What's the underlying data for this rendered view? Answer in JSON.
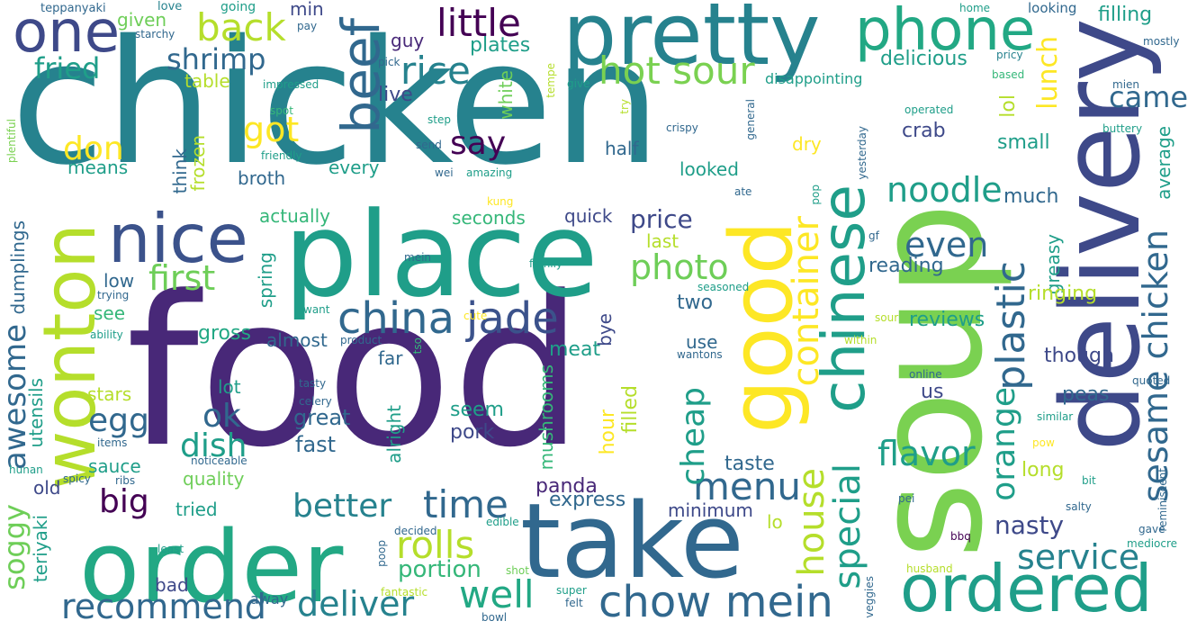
{
  "words": {
    "chicken": "chicken",
    "food": "food",
    "soup": "soup",
    "delivery": "delivery",
    "place": "place",
    "take": "take",
    "order": "order",
    "pretty": "pretty",
    "good": "good",
    "wonton": "wonton",
    "ordered": "ordered",
    "nice": "nice",
    "phone": "phone",
    "one": "one",
    "chinese": "chinese",
    "beef": "beef",
    "china": "china",
    "jade": "jade",
    "chow_mein": "chow mein",
    "sesame_chicken": "sesame chicken",
    "rice": "rice",
    "little": "little",
    "back": "back",
    "hot_sour": "hot sour",
    "plastic": "plastic",
    "container": "container",
    "noodle": "noodle",
    "photo": "photo",
    "menu": "menu",
    "time": "time",
    "rolls": "rolls",
    "well": "well",
    "deliver": "deliver",
    "recommend": "recommend",
    "service": "service",
    "house": "house",
    "special": "special",
    "even": "even",
    "flavor": "flavor",
    "orange": "orange",
    "cheap": "cheap",
    "better": "better",
    "first": "first",
    "fried": "fried",
    "shrimp": "shrimp",
    "got": "got",
    "say": "say",
    "came": "came",
    "lunch": "lunch",
    "don": "don",
    "egg": "egg",
    "ok": "ok",
    "dish": "dish",
    "big": "big",
    "awesome": "awesome",
    "soggy": "soggy",
    "portion": "portion",
    "price": "price",
    "nasty": "nasty",
    "filling": "filling",
    "delicious": "delicious",
    "live": "live",
    "plates": "plates",
    "guy": "guy",
    "min": "min",
    "table": "table",
    "given": "given",
    "means": "means",
    "think": "think",
    "frozen": "frozen",
    "white": "white",
    "lol": "lol",
    "crab": "crab",
    "small": "small",
    "much": "much",
    "average": "average",
    "greasy": "greasy",
    "ringing": "ringing",
    "reviews": "reviews",
    "reading": "reading",
    "though": "though",
    "peas": "peas",
    "long": "long",
    "us": "us",
    "taste": "taste",
    "minimum": "minimum",
    "lo": "lo",
    "express": "express",
    "panda": "panda",
    "fast": "fast",
    "great": "great",
    "pork": "pork",
    "seem": "seem",
    "mushrooms": "mushrooms",
    "meat": "meat",
    "filled": "filled",
    "hour": "hour",
    "bye": "bye",
    "two": "two",
    "use": "use",
    "last": "last",
    "quick": "quick",
    "seconds": "seconds",
    "actually": "actually",
    "every": "every",
    "broth": "broth",
    "dry": "dry",
    "looked": "looked",
    "half": "half",
    "almost": "almost",
    "far": "far",
    "alright": "alright",
    "gross": "gross",
    "spring": "spring",
    "low": "low",
    "see": "see",
    "dumplings": "dumplings",
    "stars": "stars",
    "lot": "lot",
    "utensils": "utensils",
    "sauce": "sauce",
    "quality": "quality",
    "tried": "tried",
    "old": "old",
    "teriyaki": "teriyaki",
    "bad": "bad",
    "away": "away",
    "disappointing": "disappointing",
    "looking": "looking",
    "teppanyaki": "teppanyaki",
    "love": "love",
    "going": "going",
    "starchy": "starchy",
    "pay": "pay",
    "home": "home",
    "mostly": "mostly",
    "pricy": "pricy",
    "based": "based",
    "mien": "mien",
    "buttery": "buttery",
    "impressed": "impressed",
    "spot": "spot",
    "friendly": "friendly",
    "plentiful": "plentiful",
    "pick": "pick",
    "give": "give",
    "tempe": "tempe",
    "try": "try",
    "step": "step",
    "send": "send",
    "wei": "wei",
    "amazing": "amazing",
    "crispy": "crispy",
    "general": "general",
    "operated": "operated",
    "yesterday": "yesterday",
    "ate": "ate",
    "kung": "kung",
    "pop": "pop",
    "gf": "gf",
    "mein": "mein",
    "family": "family",
    "trying": "trying",
    "want": "want",
    "cute": "cute",
    "seasoned": "seasoned",
    "sour": "sour",
    "ability": "ability",
    "product": "product",
    "tso": "tso",
    "within": "within",
    "wantons": "wantons",
    "online": "online",
    "quoted": "quoted",
    "tasty": "tasty",
    "celery": "celery",
    "similar": "similar",
    "items": "items",
    "pow": "pow",
    "noticeable": "noticeable",
    "reminiscent": "reminiscent",
    "hunan": "hunan",
    "spicy": "spicy",
    "ribs": "ribs",
    "bit": "bit",
    "pei": "pei",
    "salty": "salty",
    "decided": "decided",
    "edible": "edible",
    "gave": "gave",
    "least": "least",
    "bbq": "bbq",
    "mediocre": "mediocre",
    "poop": "poop",
    "shot": "shot",
    "husband": "husband",
    "veggies": "veggies",
    "fantastic": "fantastic",
    "super": "super",
    "felt": "felt",
    "bowl": "bowl"
  }
}
